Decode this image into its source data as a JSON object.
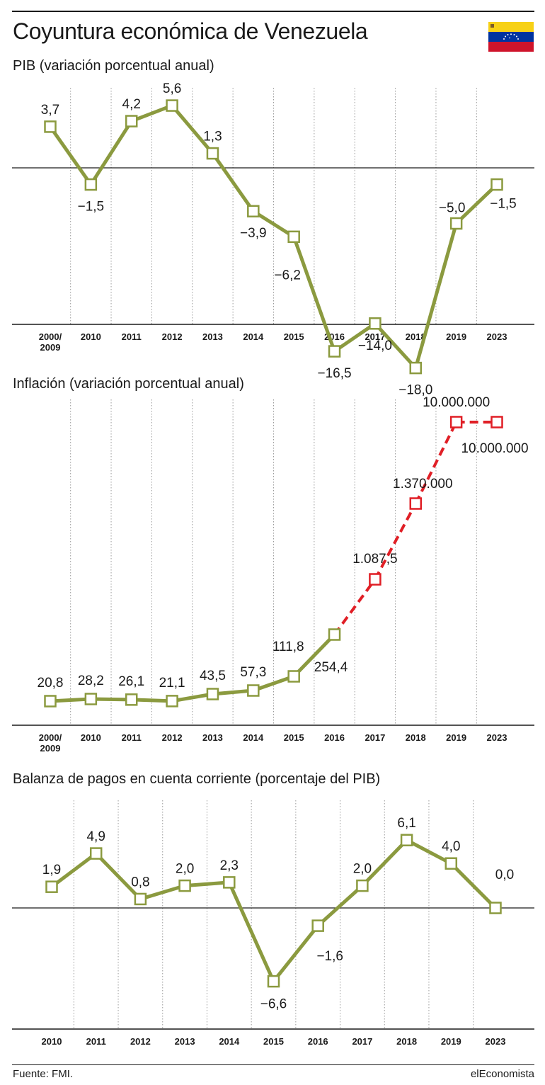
{
  "page": {
    "title": "Coyuntura económica de Venezuela",
    "source": "Fuente: FMI.",
    "brand": "elEconomista"
  },
  "colors": {
    "series": "#8b9a3f",
    "projection": "#e01f26",
    "axis": "#1a1a1a",
    "grid": "#9a9a9a",
    "flag_yellow": "#f7d117",
    "flag_blue": "#0033a0",
    "flag_red": "#cf142b"
  },
  "icons": {
    "flag": "venezuela-flag-icon"
  },
  "chart_data": [
    {
      "type": "line",
      "title": "PIB (variación porcentual anual)",
      "categories": [
        "2000/\n2009",
        "2010",
        "2011",
        "2012",
        "2013",
        "2014",
        "2015",
        "2016",
        "2017",
        "2018",
        "2019",
        "2023"
      ],
      "values": [
        3.7,
        -1.5,
        4.2,
        5.6,
        1.3,
        -3.9,
        -6.2,
        -16.5,
        -14.0,
        -18.0,
        -5.0,
        -1.5
      ],
      "value_labels": [
        "3,7",
        "−1,5",
        "4,2",
        "5,6",
        "1,3",
        "−3,9",
        "−6,2",
        "−16,5",
        "−14,0",
        "−18,0",
        "−5,0",
        "−1,5"
      ],
      "ylim": [
        -22,
        10
      ],
      "zero_line": true,
      "grid": "vertical dotted",
      "legend": "none"
    },
    {
      "type": "line",
      "title": "Inflación (variación porcentual anual)",
      "categories": [
        "2000/\n2009",
        "2010",
        "2011",
        "2012",
        "2013",
        "2014",
        "2015",
        "2016",
        "2017",
        "2018",
        "2019",
        "2023"
      ],
      "values": [
        20.8,
        28.2,
        26.1,
        21.1,
        43.5,
        57.3,
        111.8,
        254.4,
        1087.5,
        1370000,
        10000000,
        10000000
      ],
      "value_labels": [
        "20,8",
        "28,2",
        "26,1",
        "21,1",
        "43,5",
        "57,3",
        "111,8",
        "254,4",
        "1.087,5",
        "1.370.000",
        "10.000.000",
        "10.000.000"
      ],
      "projection_from": "2017",
      "scale": "non-linear (not to scale)",
      "grid": "vertical dotted",
      "legend": "none"
    },
    {
      "type": "line",
      "title": "Balanza de pagos en cuenta corriente (porcentaje del PIB)",
      "categories": [
        "2010",
        "2011",
        "2012",
        "2013",
        "2014",
        "2015",
        "2016",
        "2017",
        "2018",
        "2019",
        "2023"
      ],
      "values": [
        1.9,
        4.9,
        0.8,
        2.0,
        2.3,
        -6.6,
        -1.6,
        2.0,
        6.1,
        4.0,
        0.0
      ],
      "value_labels": [
        "1,9",
        "4,9",
        "0,8",
        "2,0",
        "2,3",
        "−6,6",
        "−1,6",
        "2,0",
        "6,1",
        "4,0",
        "0,0"
      ],
      "ylim": [
        -9.5,
        9
      ],
      "zero_line": true,
      "grid": "vertical dotted",
      "legend": "none"
    }
  ]
}
